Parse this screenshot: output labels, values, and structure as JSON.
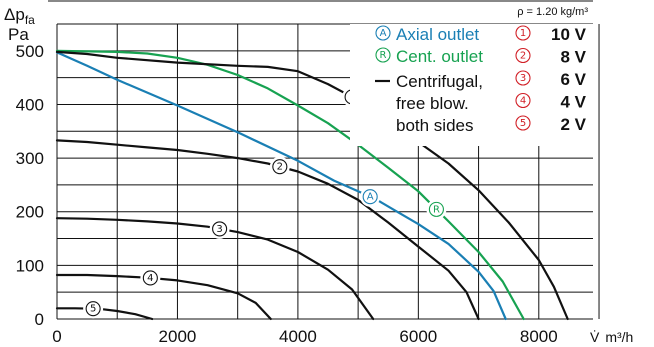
{
  "chart_data": {
    "type": "line",
    "ylabel_symbol": "Δp",
    "ylabel_subscript": "fa",
    "ylabel_unit": "Pa",
    "xlabel_symbol": "V̇",
    "xlabel_unit": "m³/h",
    "density_label": "ρ = 1.20 kg/m³",
    "xlim": [
      0,
      8900
    ],
    "ylim": [
      0,
      550
    ],
    "x_ticks": [
      0,
      2000,
      4000,
      6000,
      8000
    ],
    "x_grid": [
      0,
      1000,
      2000,
      3000,
      4000,
      5000,
      6000,
      7000,
      8000,
      9000
    ],
    "y_ticks": [
      0,
      100,
      200,
      300,
      400,
      500
    ],
    "colors": {
      "axial": "#1a7fb4",
      "centrifugal_outlet": "#17a251",
      "free_blowing": "#111111"
    },
    "legend": [
      {
        "marker": "A",
        "label": "Axial outlet",
        "color": "#1a7fb4"
      },
      {
        "marker": "R",
        "label": "Cent. outlet",
        "color": "#17a251"
      },
      {
        "marker": "line",
        "label_lines": [
          "Centrifugal,",
          "free blow.",
          "both sides"
        ],
        "color": "#111111"
      }
    ],
    "voltage_legend": [
      {
        "number": "1",
        "label": "10 V"
      },
      {
        "number": "2",
        "label": "8 V"
      },
      {
        "number": "3",
        "label": "6 V"
      },
      {
        "number": "4",
        "label": "4 V"
      },
      {
        "number": "5",
        "label": "2 V"
      }
    ],
    "series": [
      {
        "name": "A",
        "color": "#1a7fb4",
        "marker_at": 5200,
        "points": [
          [
            0,
            497
          ],
          [
            500,
            472
          ],
          [
            1000,
            446
          ],
          [
            2000,
            398
          ],
          [
            3000,
            348
          ],
          [
            4000,
            295
          ],
          [
            4600,
            258
          ],
          [
            5000,
            238
          ],
          [
            5300,
            223
          ],
          [
            5600,
            203
          ],
          [
            6000,
            177
          ],
          [
            6500,
            140
          ],
          [
            7000,
            88
          ],
          [
            7250,
            52
          ],
          [
            7450,
            0
          ]
        ]
      },
      {
        "name": "R",
        "color": "#17a251",
        "marker_at": 6300,
        "points": [
          [
            0,
            500
          ],
          [
            1000,
            498
          ],
          [
            1500,
            495
          ],
          [
            2000,
            487
          ],
          [
            2500,
            474
          ],
          [
            3000,
            455
          ],
          [
            3500,
            430
          ],
          [
            4000,
            398
          ],
          [
            4500,
            365
          ],
          [
            5000,
            325
          ],
          [
            5500,
            282
          ],
          [
            6000,
            238
          ],
          [
            6500,
            182
          ],
          [
            7000,
            125
          ],
          [
            7400,
            70
          ],
          [
            7750,
            0
          ]
        ]
      },
      {
        "name": "1",
        "color": "#111111",
        "marker_at": 4900,
        "points": [
          [
            0,
            498
          ],
          [
            500,
            494
          ],
          [
            1000,
            487
          ],
          [
            2000,
            478
          ],
          [
            3000,
            472
          ],
          [
            3500,
            470
          ],
          [
            4000,
            462
          ],
          [
            4500,
            438
          ],
          [
            5000,
            408
          ],
          [
            5500,
            370
          ],
          [
            6000,
            330
          ],
          [
            6500,
            290
          ],
          [
            7000,
            240
          ],
          [
            7500,
            180
          ],
          [
            8000,
            110
          ],
          [
            8250,
            60
          ],
          [
            8480,
            0
          ]
        ]
      },
      {
        "name": "2",
        "color": "#111111",
        "marker_at": 3700,
        "points": [
          [
            0,
            333
          ],
          [
            500,
            330
          ],
          [
            1000,
            325
          ],
          [
            1500,
            320
          ],
          [
            2000,
            315
          ],
          [
            2500,
            308
          ],
          [
            3000,
            300
          ],
          [
            3500,
            290
          ],
          [
            4000,
            275
          ],
          [
            4500,
            252
          ],
          [
            5000,
            222
          ],
          [
            5500,
            180
          ],
          [
            6000,
            135
          ],
          [
            6500,
            90
          ],
          [
            6800,
            50
          ],
          [
            7000,
            0
          ]
        ]
      },
      {
        "name": "3",
        "color": "#111111",
        "marker_at": 2700,
        "points": [
          [
            0,
            188
          ],
          [
            500,
            187
          ],
          [
            1000,
            185
          ],
          [
            1500,
            182
          ],
          [
            2000,
            178
          ],
          [
            2500,
            172
          ],
          [
            3000,
            162
          ],
          [
            3500,
            148
          ],
          [
            4000,
            125
          ],
          [
            4500,
            92
          ],
          [
            4900,
            55
          ],
          [
            5250,
            0
          ]
        ]
      },
      {
        "name": "4",
        "color": "#111111",
        "marker_at": 1550,
        "points": [
          [
            0,
            82
          ],
          [
            500,
            82
          ],
          [
            1000,
            80
          ],
          [
            1500,
            77
          ],
          [
            2000,
            72
          ],
          [
            2500,
            63
          ],
          [
            3000,
            48
          ],
          [
            3300,
            30
          ],
          [
            3550,
            0
          ]
        ]
      },
      {
        "name": "5",
        "color": "#111111",
        "marker_at": 600,
        "points": [
          [
            0,
            20
          ],
          [
            300,
            20
          ],
          [
            700,
            19
          ],
          [
            1000,
            15
          ],
          [
            1300,
            9
          ],
          [
            1580,
            0
          ]
        ]
      }
    ]
  }
}
